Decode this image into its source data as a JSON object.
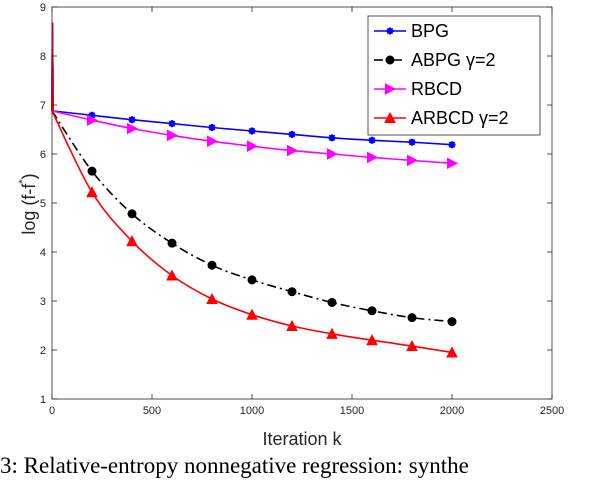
{
  "caption": "3:  Relative-entropy  nonnegative  regression:  synthe",
  "chart_data": {
    "type": "line",
    "xlabel": "Iteration k",
    "ylabel": "log (f-f",
    "ylabel_superscript": "*",
    "ylabel_suffix": ")",
    "xlim": [
      0,
      2500
    ],
    "ylim": [
      1,
      9
    ],
    "xticks": [
      0,
      500,
      1000,
      1500,
      2000,
      2500
    ],
    "yticks": [
      1,
      2,
      3,
      4,
      5,
      6,
      7,
      8,
      9
    ],
    "grid": false,
    "legend_position": "top-right",
    "series": [
      {
        "name": "BPG",
        "color": "#0000ff",
        "marker": "star",
        "line_style": "solid",
        "x": [
          0,
          200,
          400,
          600,
          800,
          1000,
          1200,
          1400,
          1600,
          1800,
          2000
        ],
        "y": [
          6.88,
          6.79,
          6.7,
          6.62,
          6.54,
          6.47,
          6.4,
          6.33,
          6.28,
          6.24,
          6.19
        ],
        "spike": [
          [
            0,
            6.88
          ],
          [
            2,
            8.68
          ],
          [
            6,
            6.88
          ]
        ]
      },
      {
        "name": "ABPG γ=2",
        "color": "#000000",
        "marker": "circle",
        "line_style": "dashdot",
        "x": [
          0,
          200,
          400,
          600,
          800,
          1000,
          1200,
          1400,
          1600,
          1800,
          2000
        ],
        "y": [
          6.88,
          5.65,
          4.78,
          4.18,
          3.73,
          3.43,
          3.19,
          2.97,
          2.8,
          2.66,
          2.58
        ],
        "spike": [
          [
            0,
            6.88
          ],
          [
            2,
            8.68
          ],
          [
            6,
            6.88
          ]
        ]
      },
      {
        "name": "RBCD",
        "color": "#ff00ff",
        "marker": "triangle-right",
        "line_style": "solid",
        "x": [
          0,
          200,
          400,
          600,
          800,
          1000,
          1200,
          1400,
          1600,
          1800,
          2000
        ],
        "y": [
          6.88,
          6.69,
          6.52,
          6.38,
          6.26,
          6.16,
          6.07,
          6.0,
          5.93,
          5.87,
          5.81
        ],
        "spike": [
          [
            0,
            6.88
          ],
          [
            2,
            8.68
          ],
          [
            6,
            6.88
          ]
        ]
      },
      {
        "name": "ARBCD γ=2",
        "color": "#ff0000",
        "marker": "triangle-up",
        "line_style": "solid",
        "x": [
          0,
          200,
          400,
          600,
          800,
          1000,
          1200,
          1400,
          1600,
          1800,
          2000
        ],
        "y": [
          6.88,
          5.22,
          4.22,
          3.52,
          3.04,
          2.72,
          2.49,
          2.33,
          2.2,
          2.08,
          1.95
        ],
        "spike": [
          [
            0,
            6.88
          ],
          [
            2,
            8.68
          ],
          [
            6,
            6.88
          ]
        ]
      }
    ]
  }
}
